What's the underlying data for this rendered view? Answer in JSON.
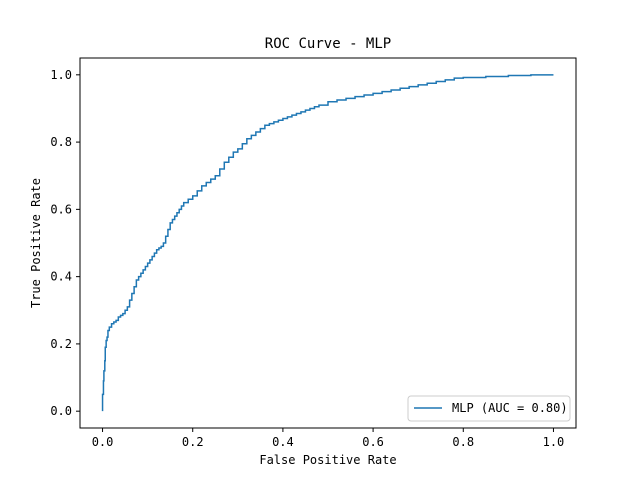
{
  "chart_data": {
    "type": "line",
    "title": "ROC Curve - MLP",
    "xlabel": "False Positive Rate",
    "ylabel": "True Positive Rate",
    "xlim": [
      -0.05,
      1.05
    ],
    "ylim": [
      -0.05,
      1.05
    ],
    "xticks": [
      0.0,
      0.2,
      0.4,
      0.6,
      0.8,
      1.0
    ],
    "xtick_labels": [
      "0.0",
      "0.2",
      "0.4",
      "0.6",
      "0.8",
      "1.0"
    ],
    "yticks": [
      0.0,
      0.2,
      0.4,
      0.6,
      0.8,
      1.0
    ],
    "ytick_labels": [
      "0.0",
      "0.2",
      "0.4",
      "0.6",
      "0.8",
      "1.0"
    ],
    "grid": false,
    "legend_position": "lower-right",
    "series": [
      {
        "name": "MLP (AUC = 0.80)",
        "color": "#1f77b4",
        "x": [
          0.0,
          0.0,
          0.002,
          0.003,
          0.005,
          0.006,
          0.008,
          0.01,
          0.012,
          0.015,
          0.02,
          0.025,
          0.03,
          0.035,
          0.04,
          0.045,
          0.05,
          0.055,
          0.06,
          0.065,
          0.07,
          0.075,
          0.08,
          0.085,
          0.09,
          0.095,
          0.1,
          0.105,
          0.11,
          0.115,
          0.12,
          0.125,
          0.13,
          0.135,
          0.14,
          0.145,
          0.15,
          0.155,
          0.16,
          0.165,
          0.17,
          0.175,
          0.18,
          0.19,
          0.2,
          0.21,
          0.22,
          0.23,
          0.24,
          0.25,
          0.26,
          0.27,
          0.28,
          0.29,
          0.3,
          0.31,
          0.32,
          0.33,
          0.34,
          0.35,
          0.36,
          0.37,
          0.38,
          0.39,
          0.4,
          0.41,
          0.42,
          0.43,
          0.44,
          0.45,
          0.46,
          0.47,
          0.48,
          0.5,
          0.52,
          0.54,
          0.56,
          0.58,
          0.6,
          0.62,
          0.64,
          0.66,
          0.68,
          0.7,
          0.72,
          0.74,
          0.76,
          0.78,
          0.8,
          0.85,
          0.9,
          0.95,
          1.0
        ],
        "y": [
          0.0,
          0.05,
          0.09,
          0.12,
          0.15,
          0.19,
          0.21,
          0.22,
          0.24,
          0.25,
          0.26,
          0.265,
          0.27,
          0.28,
          0.285,
          0.29,
          0.3,
          0.31,
          0.33,
          0.35,
          0.37,
          0.39,
          0.4,
          0.41,
          0.42,
          0.43,
          0.44,
          0.45,
          0.46,
          0.47,
          0.48,
          0.485,
          0.49,
          0.5,
          0.52,
          0.54,
          0.56,
          0.57,
          0.58,
          0.59,
          0.6,
          0.61,
          0.62,
          0.63,
          0.64,
          0.655,
          0.67,
          0.68,
          0.69,
          0.7,
          0.72,
          0.74,
          0.755,
          0.77,
          0.78,
          0.795,
          0.81,
          0.82,
          0.83,
          0.84,
          0.85,
          0.855,
          0.86,
          0.865,
          0.87,
          0.875,
          0.88,
          0.885,
          0.89,
          0.895,
          0.9,
          0.905,
          0.91,
          0.92,
          0.925,
          0.93,
          0.935,
          0.94,
          0.945,
          0.95,
          0.955,
          0.96,
          0.965,
          0.97,
          0.975,
          0.98,
          0.985,
          0.99,
          0.992,
          0.995,
          0.998,
          1.0,
          1.0
        ]
      }
    ]
  }
}
